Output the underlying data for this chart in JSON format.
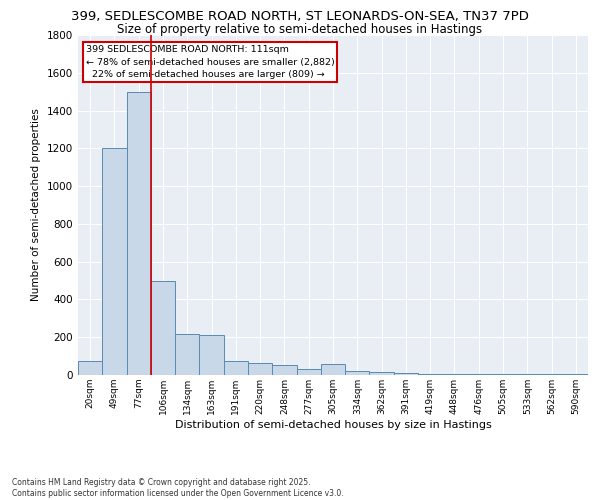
{
  "title": "399, SEDLESCOMBE ROAD NORTH, ST LEONARDS-ON-SEA, TN37 7PD",
  "subtitle": "Size of property relative to semi-detached houses in Hastings",
  "xlabel": "Distribution of semi-detached houses by size in Hastings",
  "ylabel": "Number of semi-detached properties",
  "categories": [
    "20sqm",
    "49sqm",
    "77sqm",
    "106sqm",
    "134sqm",
    "163sqm",
    "191sqm",
    "220sqm",
    "248sqm",
    "277sqm",
    "305sqm",
    "334sqm",
    "362sqm",
    "391sqm",
    "419sqm",
    "448sqm",
    "476sqm",
    "505sqm",
    "533sqm",
    "562sqm",
    "590sqm"
  ],
  "values": [
    75,
    1200,
    1500,
    500,
    215,
    210,
    75,
    65,
    55,
    30,
    60,
    20,
    15,
    10,
    5,
    5,
    5,
    5,
    5,
    5,
    5
  ],
  "bar_color": "#c8d8e8",
  "bar_edge_color": "#5a8ab0",
  "property_line_index": 3,
  "annotation_text": "399 SEDLESCOMBE ROAD NORTH: 111sqm\n← 78% of semi-detached houses are smaller (2,882)\n  22% of semi-detached houses are larger (809) →",
  "annotation_box_edge_color": "#cc0000",
  "vline_color": "#cc0000",
  "ylim": [
    0,
    1800
  ],
  "yticks": [
    0,
    200,
    400,
    600,
    800,
    1000,
    1200,
    1400,
    1600,
    1800
  ],
  "background_color": "#e8eef4",
  "footer_line1": "Contains HM Land Registry data © Crown copyright and database right 2025.",
  "footer_line2": "Contains public sector information licensed under the Open Government Licence v3.0.",
  "title_fontsize": 9.5,
  "subtitle_fontsize": 8.5,
  "footer_fontsize": 5.5
}
